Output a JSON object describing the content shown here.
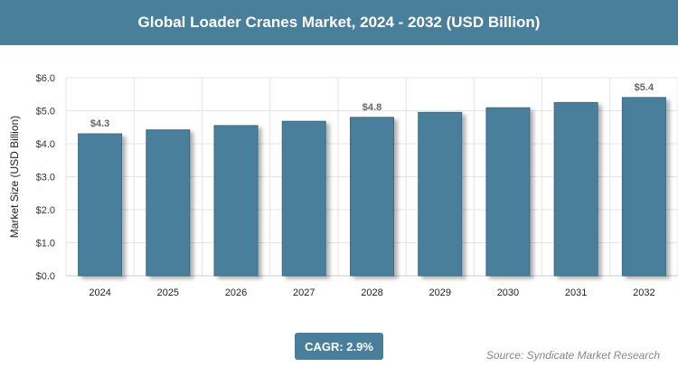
{
  "chart_data": {
    "type": "bar",
    "title": "Global Loader Cranes Market, 2024 - 2032 (USD Billion)",
    "xlabel": "",
    "ylabel": "Market Size (USD Billion)",
    "ylim": [
      0,
      6
    ],
    "yticks": [
      "$0.0",
      "$1.0",
      "$2.0",
      "$3.0",
      "$4.0",
      "$5.0",
      "$6.0"
    ],
    "categories": [
      "2024",
      "2025",
      "2026",
      "2027",
      "2028",
      "2029",
      "2030",
      "2031",
      "2032"
    ],
    "values": [
      4.3,
      4.42,
      4.55,
      4.68,
      4.8,
      4.95,
      5.09,
      5.25,
      5.4
    ],
    "data_labels": {
      "0": "$4.3",
      "4": "$4.8",
      "8": "$5.4"
    },
    "bar_color": "#4a7f9b",
    "grid": true
  },
  "cagr": "CAGR: 2.9%",
  "source": "Source: Syndicate Market Research"
}
